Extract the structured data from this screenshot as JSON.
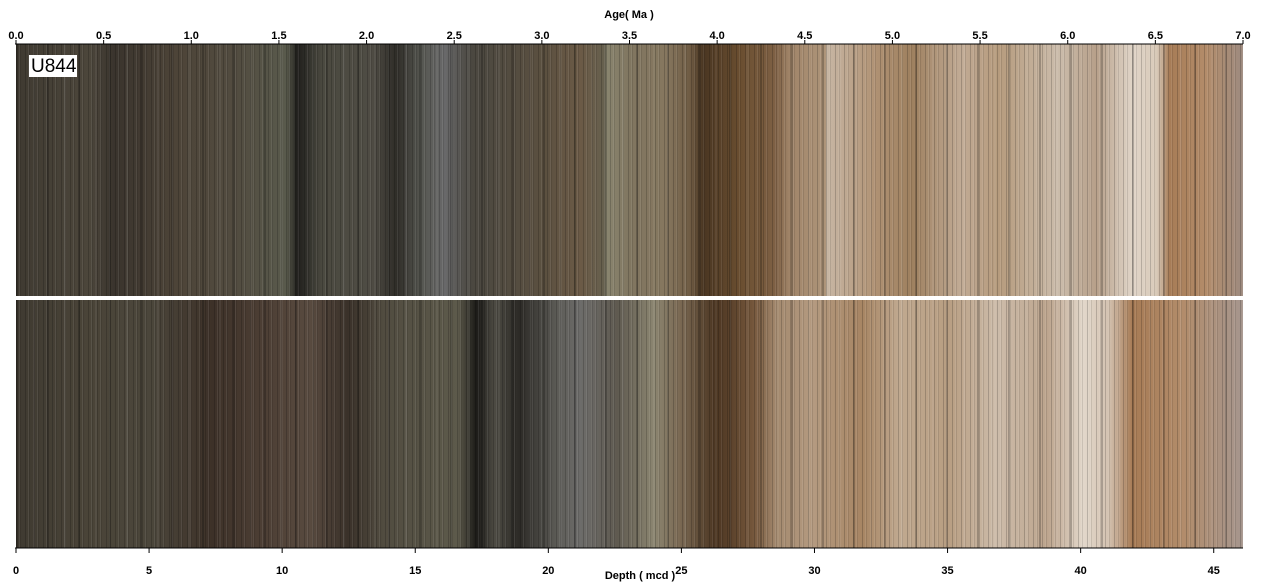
{
  "chart_data": {
    "type": "core-scan",
    "label": "U844",
    "xlabel": "Age( Ma )",
    "xlim": [
      0,
      7
    ],
    "xticks": [
      {
        "value": 0,
        "label": "0.0"
      },
      {
        "value": 0.5,
        "label": "0.5"
      },
      {
        "value": 1,
        "label": "1.0"
      },
      {
        "value": 1.5,
        "label": "1.5"
      },
      {
        "value": 2,
        "label": "2.0"
      },
      {
        "value": 2.5,
        "label": "2.5"
      },
      {
        "value": 3,
        "label": "3.0"
      },
      {
        "value": 3.5,
        "label": "3.5"
      },
      {
        "value": 4,
        "label": "4.0"
      },
      {
        "value": 4.5,
        "label": "4.5"
      },
      {
        "value": 5,
        "label": "5.0"
      },
      {
        "value": 5.5,
        "label": "5.5"
      },
      {
        "value": 6,
        "label": "6.0"
      },
      {
        "value": 6.5,
        "label": "6.5"
      },
      {
        "value": 7,
        "label": "7.0"
      }
    ],
    "x2label": "Depth ( mcd )",
    "x2lim": [
      0,
      46.1
    ],
    "x2ticks": [
      0,
      5,
      10,
      15,
      20,
      25,
      30,
      35,
      40,
      45
    ]
  }
}
